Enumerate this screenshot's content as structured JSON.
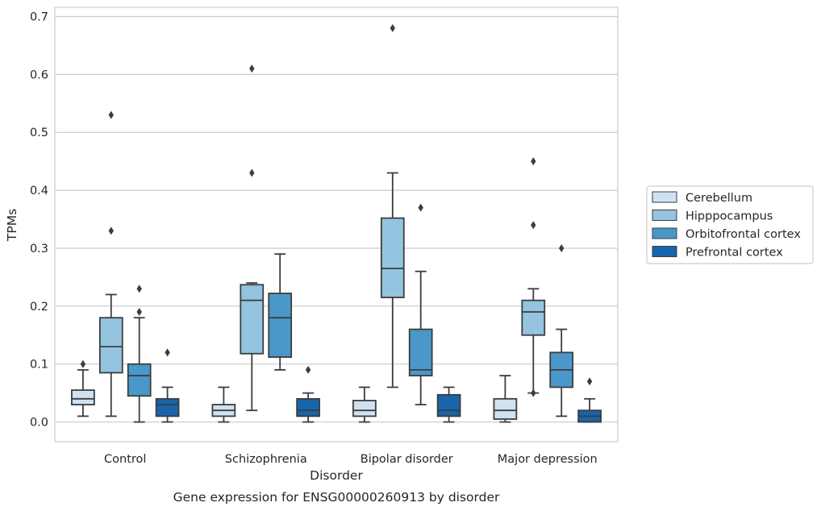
{
  "chart_data": {
    "type": "box",
    "xlabel": "Disorder",
    "ylabel": "TPMs",
    "caption": "Gene expression for ENSG00000260913 by disorder",
    "ylim": [
      -0.034,
      0.716
    ],
    "yticks": [
      0.0,
      0.1,
      0.2,
      0.3,
      0.4,
      0.5,
      0.6,
      0.7
    ],
    "ytick_labels": [
      "0.0",
      "0.1",
      "0.2",
      "0.3",
      "0.4",
      "0.5",
      "0.6",
      "0.7"
    ],
    "grid": "horizontal",
    "legend_position": "right",
    "categories": [
      "Control",
      "Schizophrenia",
      "Bipolar disorder",
      "Major depression"
    ],
    "series": [
      {
        "name": "Cerebellum",
        "color": "#d0e1f2",
        "boxes": [
          {
            "whislo": 0.01,
            "q1": 0.03,
            "med": 0.04,
            "q3": 0.055,
            "whishi": 0.09,
            "fliers": [
              0.1
            ]
          },
          {
            "whislo": 0.0,
            "q1": 0.01,
            "med": 0.02,
            "q3": 0.03,
            "whishi": 0.06,
            "fliers": []
          },
          {
            "whislo": 0.0,
            "q1": 0.01,
            "med": 0.02,
            "q3": 0.037,
            "whishi": 0.06,
            "fliers": []
          },
          {
            "whislo": 0.0,
            "q1": 0.005,
            "med": 0.02,
            "q3": 0.04,
            "whishi": 0.08,
            "fliers": []
          }
        ]
      },
      {
        "name": "Hipppocampus",
        "color": "#94c4df",
        "boxes": [
          {
            "whislo": 0.01,
            "q1": 0.085,
            "med": 0.13,
            "q3": 0.18,
            "whishi": 0.22,
            "fliers": [
              0.33,
              0.53
            ]
          },
          {
            "whislo": 0.02,
            "q1": 0.118,
            "med": 0.21,
            "q3": 0.237,
            "whishi": 0.24,
            "fliers": [
              0.43,
              0.61
            ]
          },
          {
            "whislo": 0.06,
            "q1": 0.215,
            "med": 0.265,
            "q3": 0.352,
            "whishi": 0.43,
            "fliers": [
              0.68
            ]
          },
          {
            "whislo": 0.05,
            "q1": 0.15,
            "med": 0.19,
            "q3": 0.21,
            "whishi": 0.23,
            "fliers": [
              0.05,
              0.34,
              0.45
            ]
          }
        ]
      },
      {
        "name": "Orbitofrontal cortex",
        "color": "#4a98c9",
        "boxes": [
          {
            "whislo": 0.0,
            "q1": 0.045,
            "med": 0.08,
            "q3": 0.1,
            "whishi": 0.18,
            "fliers": [
              0.19,
              0.23
            ]
          },
          {
            "whislo": 0.09,
            "q1": 0.112,
            "med": 0.18,
            "q3": 0.222,
            "whishi": 0.29,
            "fliers": []
          },
          {
            "whislo": 0.03,
            "q1": 0.08,
            "med": 0.09,
            "q3": 0.16,
            "whishi": 0.26,
            "fliers": [
              0.37
            ]
          },
          {
            "whislo": 0.01,
            "q1": 0.06,
            "med": 0.09,
            "q3": 0.12,
            "whishi": 0.16,
            "fliers": [
              0.3
            ]
          }
        ]
      },
      {
        "name": "Prefrontal cortex",
        "color": "#1764ab",
        "boxes": [
          {
            "whislo": 0.0,
            "q1": 0.01,
            "med": 0.03,
            "q3": 0.04,
            "whishi": 0.06,
            "fliers": [
              0.12
            ]
          },
          {
            "whislo": 0.0,
            "q1": 0.01,
            "med": 0.02,
            "q3": 0.04,
            "whishi": 0.05,
            "fliers": [
              0.09
            ]
          },
          {
            "whislo": 0.0,
            "q1": 0.01,
            "med": 0.02,
            "q3": 0.047,
            "whishi": 0.06,
            "fliers": []
          },
          {
            "whislo": 0.0,
            "q1": 0.0,
            "med": 0.01,
            "q3": 0.02,
            "whishi": 0.04,
            "fliers": [
              0.07
            ]
          }
        ]
      }
    ]
  }
}
